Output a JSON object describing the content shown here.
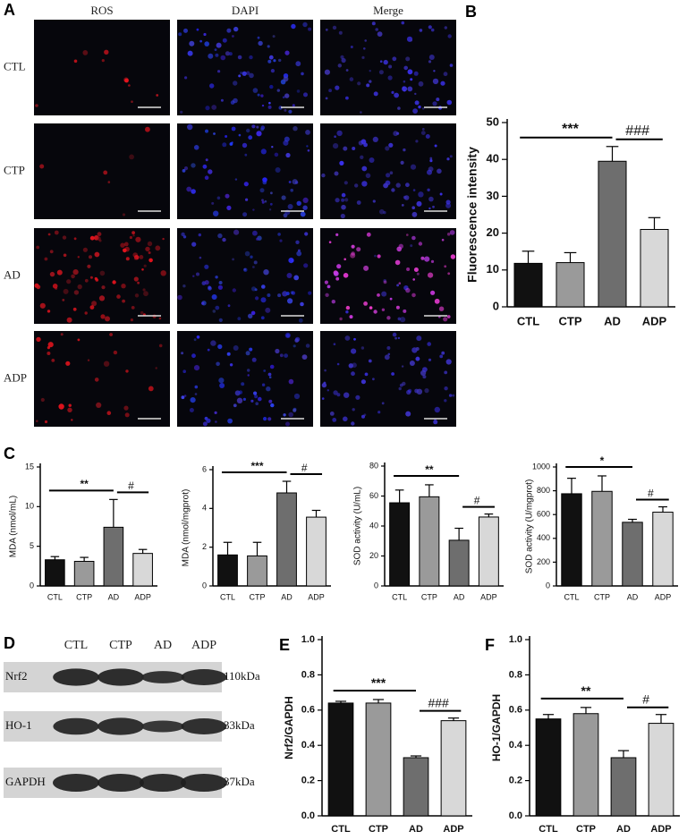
{
  "figure_a": {
    "label": "A",
    "columns": [
      "ROS",
      "DAPI",
      "Merge"
    ],
    "rows": [
      "CTL",
      "CTP",
      "AD",
      "ADP"
    ]
  },
  "chart_data": [
    {
      "type": "bar",
      "panel_label": "B",
      "y_label": "Fluorescence intensity",
      "categories": [
        "CTL",
        "CTP",
        "AD",
        "ADP"
      ],
      "values": [
        11.8,
        12,
        39.5,
        21
      ],
      "errors": [
        3.3,
        2.7,
        4,
        3.2
      ],
      "colors": [
        "#111111",
        "#9a9a9a",
        "#6e6e6e",
        "#d8d8d8"
      ],
      "ylim": [
        0,
        50
      ],
      "yticks": [
        0,
        10,
        20,
        30,
        40,
        50
      ],
      "annotations": [
        "***",
        "###"
      ]
    },
    {
      "type": "bar",
      "panel_label": "C",
      "y_label": "MDA (nmol/mL)",
      "categories": [
        "CTL",
        "CTP",
        "AD",
        "ADP"
      ],
      "values": [
        3.3,
        3.1,
        7.4,
        4.1
      ],
      "errors": [
        0.4,
        0.5,
        3.5,
        0.5
      ],
      "colors": [
        "#111111",
        "#9a9a9a",
        "#6e6e6e",
        "#d8d8d8"
      ],
      "ylim": [
        0,
        15
      ],
      "yticks": [
        0,
        5,
        10,
        15
      ],
      "annotations": [
        "**",
        "#"
      ]
    },
    {
      "type": "bar",
      "y_label": "MDA (nmol/mgprot)",
      "categories": [
        "CTL",
        "CTP",
        "AD",
        "ADP"
      ],
      "values": [
        1.6,
        1.55,
        4.8,
        3.55
      ],
      "errors": [
        0.65,
        0.7,
        0.6,
        0.35
      ],
      "colors": [
        "#111111",
        "#9a9a9a",
        "#6e6e6e",
        "#d8d8d8"
      ],
      "ylim": [
        0,
        6
      ],
      "yticks": [
        0,
        2,
        4,
        6
      ],
      "annotations": [
        "***",
        "#"
      ]
    },
    {
      "type": "bar",
      "y_label": "SOD activity (U/mL)",
      "categories": [
        "CTL",
        "CTP",
        "AD",
        "ADP"
      ],
      "values": [
        55.5,
        59.5,
        30.5,
        46
      ],
      "errors": [
        8.5,
        8,
        8,
        2
      ],
      "colors": [
        "#111111",
        "#9a9a9a",
        "#6e6e6e",
        "#d8d8d8"
      ],
      "ylim": [
        0,
        80
      ],
      "yticks": [
        0,
        20,
        40,
        60,
        80
      ],
      "annotations": [
        "**",
        "#"
      ]
    },
    {
      "type": "bar",
      "y_label": "SOD activity (U/mgprot)",
      "categories": [
        "CTL",
        "CTP",
        "AD",
        "ADP"
      ],
      "values": [
        775,
        795,
        535,
        620
      ],
      "errors": [
        130,
        130,
        25,
        45
      ],
      "colors": [
        "#111111",
        "#9a9a9a",
        "#6e6e6e",
        "#d8d8d8"
      ],
      "ylim": [
        0,
        1000
      ],
      "yticks": [
        0,
        200,
        400,
        600,
        800,
        1000
      ],
      "annotations": [
        "*",
        "#"
      ]
    },
    {
      "type": "bar",
      "panel_label": "E",
      "y_label": "Nrf2/GAPDH",
      "categories": [
        "CTL",
        "CTP",
        "AD",
        "ADP"
      ],
      "values": [
        0.64,
        0.64,
        0.33,
        0.54
      ],
      "errors": [
        0.01,
        0.02,
        0.01,
        0.015
      ],
      "colors": [
        "#111111",
        "#9a9a9a",
        "#6e6e6e",
        "#d8d8d8"
      ],
      "ylim": [
        0,
        1
      ],
      "yticks": [
        {
          "value": 0,
          "label": "0.0"
        },
        0.2,
        0.4,
        0.6,
        0.8,
        {
          "value": 1,
          "label": "1.0"
        }
      ],
      "annotations": [
        "***",
        "###"
      ]
    },
    {
      "type": "bar",
      "panel_label": "F",
      "y_label": "HO-1/GAPDH",
      "categories": [
        "CTL",
        "CTP",
        "AD",
        "ADP"
      ],
      "values": [
        0.55,
        0.58,
        0.33,
        0.525
      ],
      "errors": [
        0.025,
        0.035,
        0.04,
        0.05
      ],
      "colors": [
        "#111111",
        "#9a9a9a",
        "#6e6e6e",
        "#d8d8d8"
      ],
      "ylim": [
        0,
        1
      ],
      "yticks": [
        {
          "value": 0,
          "label": "0.0"
        },
        0.2,
        0.4,
        0.6,
        0.8,
        {
          "value": 1,
          "label": "1.0"
        }
      ],
      "annotations": [
        "**",
        "#"
      ]
    }
  ],
  "figure_d": {
    "label": "D",
    "lanes": [
      "CTL",
      "CTP",
      "AD",
      "ADP"
    ],
    "bands": [
      {
        "name": "Nrf2",
        "size": "110kDa"
      },
      {
        "name": "HO-1",
        "size": "33kDa"
      },
      {
        "name": "GAPDH",
        "size": "37kDa"
      }
    ]
  }
}
